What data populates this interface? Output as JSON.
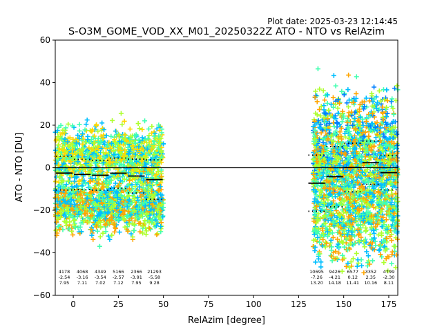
{
  "chart_data": {
    "type": "scatter",
    "plot_date": "Plot date: 2025-03-23 12:14:45",
    "title": "S-O3M_GOME_VOD_XX_M01_20250322Z ATO - NTO vs RelAzim",
    "xlabel": "RelAzim [degree]",
    "ylabel": "ATO - NTO [DU]",
    "xlim": [
      -10,
      180
    ],
    "ylim": [
      -60,
      60
    ],
    "xticks": [
      "0",
      "25",
      "50",
      "75",
      "100",
      "125",
      "150",
      "175"
    ],
    "yticks": [
      "−60",
      "−40",
      "−20",
      "0",
      "20",
      "40",
      "60"
    ],
    "grid": false,
    "zero_line": 0,
    "bins": [
      {
        "x_start": -10,
        "x_end": 0,
        "count": "4178",
        "mean": "-2.54",
        "std": "7.95"
      },
      {
        "x_start": 0,
        "x_end": 10,
        "count": "4068",
        "mean": "-3.16",
        "std": "7.11"
      },
      {
        "x_start": 10,
        "x_end": 20,
        "count": "4349",
        "mean": "-3.54",
        "std": "7.02"
      },
      {
        "x_start": 20,
        "x_end": 30,
        "count": "5166",
        "mean": "-2.57",
        "std": "7.12"
      },
      {
        "x_start": 30,
        "x_end": 40,
        "count": "2366",
        "mean": "-3.91",
        "std": "7.95"
      },
      {
        "x_start": 40,
        "x_end": 50,
        "count": "21293",
        "mean": "-5.58",
        "std": "9.28"
      },
      {
        "x_start": 130,
        "x_end": 140,
        "count": "10695",
        "mean": "-7.26",
        "std": "13.20"
      },
      {
        "x_start": 140,
        "x_end": 150,
        "count": "9426",
        "mean": "-4.21",
        "std": "14.18"
      },
      {
        "x_start": 150,
        "x_end": 160,
        "count": "6577",
        "mean": "0.12",
        "std": "11.41"
      },
      {
        "x_start": 160,
        "x_end": 170,
        "count": "3352",
        "mean": "2.35",
        "std": "10.16"
      },
      {
        "x_start": 170,
        "x_end": 180,
        "count": "4799",
        "mean": "-2.30",
        "std": "8.11"
      }
    ],
    "point_clusters": [
      {
        "x_range": [
          -10,
          50
        ],
        "y_center": 5,
        "y_spread": 14,
        "colors": [
          "#adff2f",
          "#00bfff",
          "#40ffb0",
          "#ffd700"
        ]
      },
      {
        "x_range": [
          -10,
          50
        ],
        "y_center": -18,
        "y_spread": 12,
        "colors": [
          "#00bfff",
          "#40ffb0",
          "#adff2f",
          "#ffa500"
        ]
      },
      {
        "x_range": [
          133,
          180
        ],
        "y_center": 10,
        "y_spread": 25,
        "colors": [
          "#40ffb0",
          "#adff2f",
          "#ffa500",
          "#0080ff",
          "#00bfff"
        ]
      },
      {
        "x_range": [
          133,
          180
        ],
        "y_center": -18,
        "y_spread": 25,
        "colors": [
          "#40ffb0",
          "#adff2f",
          "#ffa500",
          "#00bfff"
        ]
      }
    ]
  }
}
